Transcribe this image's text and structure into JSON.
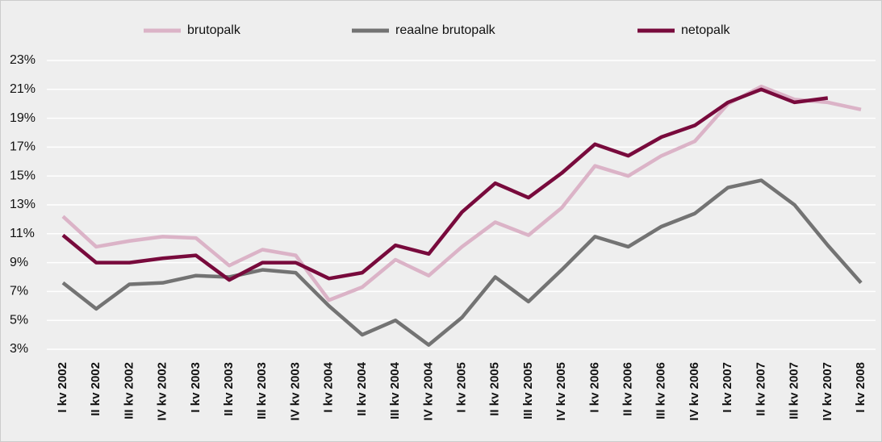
{
  "chart_data": {
    "type": "line",
    "categories": [
      "I kv 2002",
      "II kv 2002",
      "III kv 2002",
      "IV kv 2002",
      "I kv 2003",
      "II kv 2003",
      "III kv 2003",
      "IV kv 2003",
      "I kv 2004",
      "II kv 2004",
      "III kv 2004",
      "IV kv 2004",
      "I kv 2005",
      "II kv 2005",
      "III kv 2005",
      "IV kv 2005",
      "I kv 2006",
      "II kv 2006",
      "III kv 2006",
      "IV kv 2006",
      "I kv 2007",
      "II kv 2007",
      "III kv 2007",
      "IV kv 2007",
      "I kv 2008"
    ],
    "series": [
      {
        "name": "brutopalk",
        "color": "#dbb3c7",
        "values": [
          12.2,
          10.1,
          10.5,
          10.8,
          10.7,
          8.8,
          9.9,
          9.5,
          6.4,
          7.3,
          9.2,
          8.1,
          10.1,
          11.8,
          10.9,
          12.8,
          15.7,
          15.0,
          16.4,
          17.4,
          20.0,
          21.2,
          20.3,
          20.1,
          19.6
        ]
      },
      {
        "name": "reaalne brutopalk",
        "color": "#737373",
        "values": [
          7.6,
          5.8,
          7.5,
          7.6,
          8.1,
          8.0,
          8.5,
          8.3,
          6.0,
          4.0,
          5.0,
          3.3,
          5.2,
          8.0,
          6.3,
          8.5,
          10.8,
          10.1,
          11.5,
          12.4,
          14.2,
          14.7,
          13.0,
          10.2,
          7.6
        ]
      },
      {
        "name": "netopalk",
        "color": "#780a3c",
        "values": [
          10.9,
          9.0,
          9.0,
          9.3,
          9.5,
          7.8,
          9.0,
          9.0,
          7.9,
          8.3,
          10.2,
          9.6,
          12.5,
          14.5,
          13.5,
          15.2,
          17.2,
          16.4,
          17.7,
          18.5,
          20.1,
          21.0,
          20.1,
          20.4,
          null
        ]
      }
    ],
    "ylim": [
      3,
      23
    ],
    "yticks": [
      {
        "value": 3,
        "label": "3%"
      },
      {
        "value": 5,
        "label": "5%"
      },
      {
        "value": 7,
        "label": "7%"
      },
      {
        "value": 9,
        "label": "9%"
      },
      {
        "value": 11,
        "label": "11%"
      },
      {
        "value": 13,
        "label": "13%"
      },
      {
        "value": 15,
        "label": "15%"
      },
      {
        "value": 17,
        "label": "17%"
      },
      {
        "value": 19,
        "label": "19%"
      },
      {
        "value": 21,
        "label": "21%"
      },
      {
        "value": 23,
        "label": "23%"
      }
    ],
    "grid": true
  }
}
